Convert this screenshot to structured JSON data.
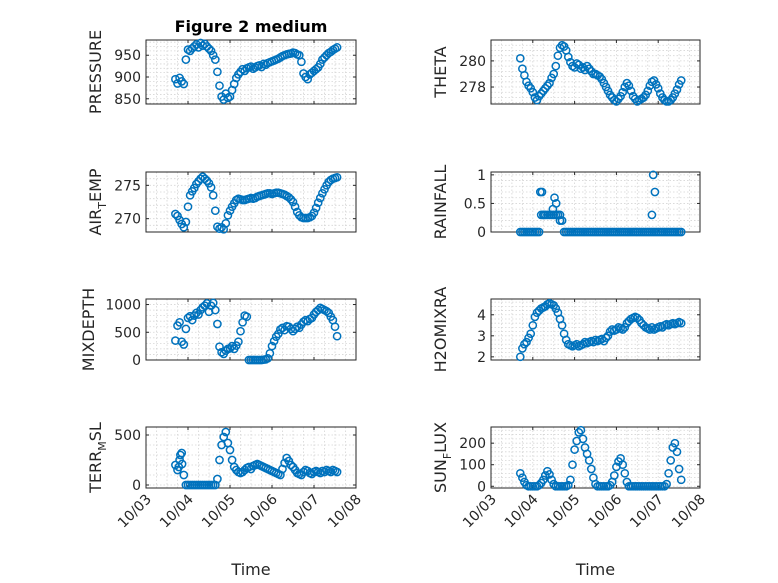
{
  "figure": {
    "title": "Figure 2 medium",
    "marker_color": "#0072BD",
    "x_tick_labels": [
      "10/03",
      "10/04",
      "10/05",
      "10/06",
      "10/07",
      "10/08"
    ],
    "x_label": "Time"
  },
  "chart_data": [
    {
      "type": "scatter",
      "id": "pressure",
      "title": "Figure 2 medium",
      "ylabel": "PRESSURE",
      "yticks": [
        850,
        900,
        950
      ],
      "ylim": [
        838,
        985
      ],
      "xlim": [
        3,
        8
      ],
      "x": [
        3.7,
        3.75,
        3.8,
        3.85,
        3.9,
        3.95,
        4.0,
        4.05,
        4.1,
        4.15,
        4.2,
        4.25,
        4.3,
        4.35,
        4.4,
        4.45,
        4.5,
        4.55,
        4.6,
        4.65,
        4.7,
        4.75,
        4.8,
        4.85,
        4.9,
        4.95,
        5.0,
        5.05,
        5.1,
        5.15,
        5.2,
        5.25,
        5.3,
        5.35,
        5.4,
        5.45,
        5.5,
        5.55,
        5.6,
        5.65,
        5.7,
        5.75,
        5.8,
        5.85,
        5.9,
        5.95,
        6.0,
        6.05,
        6.1,
        6.15,
        6.2,
        6.25,
        6.3,
        6.35,
        6.4,
        6.45,
        6.5,
        6.55,
        6.6,
        6.65,
        6.7,
        6.75,
        6.8,
        6.85,
        6.9,
        6.95,
        7.0,
        7.05,
        7.1,
        7.15,
        7.2,
        7.25,
        7.3,
        7.35,
        7.4,
        7.45,
        7.5,
        7.55
      ],
      "y": [
        895,
        885,
        898,
        890,
        884,
        940,
        963,
        960,
        966,
        970,
        975,
        968,
        978,
        972,
        976,
        970,
        965,
        960,
        950,
        940,
        912,
        880,
        855,
        848,
        862,
        852,
        855,
        870,
        884,
        898,
        906,
        912,
        918,
        914,
        920,
        922,
        924,
        919,
        922,
        925,
        927,
        923,
        930,
        928,
        932,
        934,
        936,
        938,
        940,
        942,
        945,
        948,
        950,
        952,
        953,
        954,
        956,
        955,
        952,
        950,
        935,
        908,
        900,
        895,
        906,
        910,
        914,
        918,
        922,
        930,
        940,
        945,
        950,
        955,
        958,
        962,
        965,
        968
      ]
    },
    {
      "type": "scatter",
      "id": "theta",
      "ylabel": "THETA",
      "yticks": [
        278,
        280
      ],
      "ylim": [
        276.7,
        281.6
      ],
      "xlim": [
        3,
        8
      ],
      "x": [
        3.7,
        3.75,
        3.8,
        3.85,
        3.9,
        3.95,
        4.0,
        4.05,
        4.1,
        4.15,
        4.2,
        4.25,
        4.3,
        4.35,
        4.4,
        4.45,
        4.5,
        4.55,
        4.6,
        4.65,
        4.7,
        4.75,
        4.8,
        4.85,
        4.9,
        4.95,
        5.0,
        5.05,
        5.1,
        5.15,
        5.2,
        5.25,
        5.3,
        5.35,
        5.4,
        5.45,
        5.5,
        5.55,
        5.6,
        5.65,
        5.7,
        5.75,
        5.8,
        5.85,
        5.9,
        5.95,
        6.0,
        6.05,
        6.1,
        6.15,
        6.2,
        6.25,
        6.3,
        6.35,
        6.4,
        6.45,
        6.5,
        6.55,
        6.6,
        6.65,
        6.7,
        6.75,
        6.8,
        6.85,
        6.9,
        6.95,
        7.0,
        7.05,
        7.1,
        7.15,
        7.2,
        7.25,
        7.3,
        7.35,
        7.4,
        7.45,
        7.5,
        7.55
      ],
      "y": [
        280.2,
        279.4,
        278.9,
        278.4,
        278.1,
        277.9,
        277.6,
        277.2,
        277.0,
        277.3,
        277.5,
        277.7,
        277.9,
        278.1,
        278.3,
        278.7,
        279.0,
        279.6,
        280.4,
        281.0,
        281.2,
        281.1,
        280.8,
        280.3,
        279.9,
        279.6,
        279.5,
        279.8,
        279.7,
        279.4,
        279.5,
        279.3,
        279.6,
        279.4,
        279.2,
        279.0,
        279.0,
        278.9,
        278.8,
        278.6,
        278.3,
        278.0,
        277.7,
        277.4,
        277.2,
        277.0,
        276.9,
        277.1,
        277.3,
        277.6,
        278.0,
        278.3,
        278.1,
        277.7,
        277.3,
        277.1,
        276.9,
        277.0,
        277.1,
        277.2,
        277.4,
        277.7,
        278.1,
        278.4,
        278.5,
        278.2,
        277.9,
        277.5,
        277.2,
        277.0,
        276.9,
        276.9,
        277.0,
        277.2,
        277.5,
        277.8,
        278.2,
        278.5
      ]
    },
    {
      "type": "scatter",
      "id": "air_temp",
      "ylabel": "AIR_TEMP",
      "ylabel_main": "AIR",
      "ylabel_sub": "T",
      "ylabel_rest": "EMP",
      "yticks": [
        270,
        275
      ],
      "ylim": [
        268,
        277
      ],
      "xlim": [
        3,
        8
      ],
      "x": [
        3.7,
        3.75,
        3.8,
        3.85,
        3.9,
        3.95,
        4.0,
        4.05,
        4.1,
        4.15,
        4.2,
        4.25,
        4.3,
        4.35,
        4.4,
        4.45,
        4.5,
        4.55,
        4.6,
        4.65,
        4.7,
        4.75,
        4.8,
        4.85,
        4.9,
        4.95,
        5.0,
        5.05,
        5.1,
        5.15,
        5.2,
        5.25,
        5.3,
        5.35,
        5.4,
        5.45,
        5.5,
        5.55,
        5.6,
        5.65,
        5.7,
        5.75,
        5.8,
        5.85,
        5.9,
        5.95,
        6.0,
        6.05,
        6.1,
        6.15,
        6.2,
        6.25,
        6.3,
        6.35,
        6.4,
        6.45,
        6.5,
        6.55,
        6.6,
        6.65,
        6.7,
        6.75,
        6.8,
        6.85,
        6.9,
        6.95,
        7.0,
        7.05,
        7.1,
        7.15,
        7.2,
        7.25,
        7.3,
        7.35,
        7.4,
        7.45,
        7.5,
        7.55
      ],
      "y": [
        270.7,
        270.4,
        269.8,
        269.2,
        268.7,
        269.5,
        271.8,
        273.5,
        274.1,
        274.6,
        275.2,
        275.6,
        276.0,
        276.3,
        276.0,
        275.7,
        275.3,
        274.7,
        273.5,
        271.2,
        268.8,
        268.5,
        268.7,
        268.4,
        269.3,
        270.5,
        271.2,
        271.8,
        272.3,
        272.8,
        273.0,
        272.9,
        272.8,
        272.8,
        272.9,
        273.0,
        273.1,
        273.0,
        273.1,
        273.3,
        273.4,
        273.5,
        273.6,
        273.7,
        273.8,
        273.8,
        273.7,
        273.8,
        273.9,
        273.9,
        273.8,
        273.7,
        273.6,
        273.4,
        273.2,
        272.9,
        272.5,
        271.8,
        271.0,
        270.5,
        270.2,
        270.1,
        270.1,
        270.1,
        270.2,
        270.4,
        270.9,
        271.6,
        272.4,
        273.1,
        273.8,
        274.4,
        275.0,
        275.5,
        275.8,
        276.0,
        276.1,
        276.2
      ]
    },
    {
      "type": "scatter",
      "id": "rainfall",
      "ylabel": "RAINFALL",
      "yticks": [
        0,
        0.5,
        1
      ],
      "ylim": [
        0,
        1.05
      ],
      "xlim": [
        3,
        8
      ],
      "x": [
        3.7,
        3.75,
        3.8,
        3.85,
        3.9,
        3.95,
        4.0,
        4.05,
        4.1,
        4.15,
        4.2,
        4.25,
        4.3,
        4.35,
        4.4,
        4.45,
        4.5,
        4.55,
        4.6,
        4.65,
        4.7,
        4.75,
        4.8,
        4.85,
        4.9,
        4.95,
        5.0,
        5.05,
        5.1,
        5.15,
        5.2,
        5.25,
        5.3,
        5.35,
        5.4,
        5.45,
        5.5,
        5.55,
        5.6,
        5.65,
        5.7,
        5.75,
        5.8,
        5.85,
        5.9,
        5.95,
        6.0,
        6.05,
        6.1,
        6.15,
        6.2,
        6.25,
        6.3,
        6.35,
        6.4,
        6.45,
        6.5,
        6.55,
        6.6,
        6.65,
        6.7,
        6.75,
        6.8,
        6.85,
        6.9,
        6.95,
        7.0,
        7.05,
        7.1,
        7.15,
        7.2,
        7.25,
        7.3,
        7.35,
        7.4,
        7.45,
        7.5,
        7.55,
        4.18,
        4.22,
        4.26,
        4.48,
        4.52,
        4.56,
        4.6,
        4.65,
        6.85,
        6.88,
        6.92
      ],
      "y": [
        0,
        0,
        0,
        0,
        0,
        0,
        0,
        0,
        0,
        0,
        0.3,
        0.3,
        0.3,
        0.3,
        0.3,
        0.3,
        0.3,
        0.3,
        0.3,
        0.3,
        0.2,
        0,
        0,
        0,
        0,
        0,
        0,
        0,
        0,
        0,
        0,
        0,
        0,
        0,
        0,
        0,
        0,
        0,
        0,
        0,
        0,
        0,
        0,
        0,
        0,
        0,
        0,
        0,
        0,
        0,
        0,
        0,
        0,
        0,
        0,
        0,
        0,
        0,
        0,
        0,
        0,
        0,
        0,
        0,
        0,
        0,
        0,
        0,
        0,
        0,
        0,
        0,
        0,
        0,
        0,
        0,
        0,
        0,
        0.7,
        0.7,
        0.3,
        0.4,
        0.6,
        0.5,
        0.3,
        0.2,
        0.3,
        1.0,
        0.7
      ]
    },
    {
      "type": "scatter",
      "id": "mixdepth",
      "ylabel": "MIXDEPTH",
      "yticks": [
        0,
        500,
        1000
      ],
      "ylim": [
        0,
        1100
      ],
      "xlim": [
        3,
        8
      ],
      "x": [
        3.7,
        3.75,
        3.8,
        3.85,
        3.9,
        3.95,
        4.0,
        4.05,
        4.1,
        4.15,
        4.2,
        4.25,
        4.3,
        4.35,
        4.4,
        4.45,
        4.5,
        4.55,
        4.6,
        4.65,
        4.7,
        4.75,
        4.8,
        4.85,
        4.9,
        4.95,
        5.0,
        5.05,
        5.1,
        5.15,
        5.2,
        5.25,
        5.3,
        5.35,
        5.4,
        5.45,
        5.5,
        5.55,
        5.6,
        5.65,
        5.7,
        5.75,
        5.8,
        5.85,
        5.9,
        5.95,
        6.0,
        6.05,
        6.1,
        6.15,
        6.2,
        6.25,
        6.3,
        6.35,
        6.4,
        6.45,
        6.5,
        6.55,
        6.6,
        6.65,
        6.7,
        6.75,
        6.8,
        6.85,
        6.9,
        6.95,
        7.0,
        7.05,
        7.1,
        7.15,
        7.2,
        7.25,
        7.3,
        7.35,
        7.4,
        7.45,
        7.5,
        7.55
      ],
      "y": [
        350,
        620,
        680,
        330,
        280,
        560,
        760,
        790,
        720,
        800,
        850,
        820,
        900,
        950,
        980,
        1020,
        870,
        980,
        1030,
        900,
        650,
        240,
        140,
        110,
        170,
        200,
        210,
        250,
        200,
        260,
        330,
        520,
        680,
        800,
        780,
        0,
        0,
        0,
        0,
        0,
        0,
        0,
        5,
        10,
        30,
        120,
        250,
        340,
        420,
        470,
        550,
        580,
        540,
        610,
        600,
        560,
        520,
        560,
        600,
        580,
        640,
        690,
        720,
        700,
        740,
        760,
        820,
        870,
        900,
        940,
        920,
        900,
        880,
        850,
        780,
        720,
        600,
        430
      ]
    },
    {
      "type": "scatter",
      "id": "h2omixra",
      "ylabel": "H2OMIXRA",
      "yticks": [
        2,
        3,
        4
      ],
      "ylim": [
        1.85,
        4.75
      ],
      "xlim": [
        3,
        8
      ],
      "x": [
        3.7,
        3.75,
        3.8,
        3.85,
        3.9,
        3.95,
        4.0,
        4.05,
        4.1,
        4.15,
        4.2,
        4.25,
        4.3,
        4.35,
        4.4,
        4.45,
        4.5,
        4.55,
        4.6,
        4.65,
        4.7,
        4.75,
        4.8,
        4.85,
        4.9,
        4.95,
        5.0,
        5.05,
        5.1,
        5.15,
        5.2,
        5.25,
        5.3,
        5.35,
        5.4,
        5.45,
        5.5,
        5.55,
        5.6,
        5.65,
        5.7,
        5.75,
        5.8,
        5.85,
        5.9,
        5.95,
        6.0,
        6.05,
        6.1,
        6.15,
        6.2,
        6.25,
        6.3,
        6.35,
        6.4,
        6.45,
        6.5,
        6.55,
        6.6,
        6.65,
        6.7,
        6.75,
        6.8,
        6.85,
        6.9,
        6.95,
        7.0,
        7.05,
        7.1,
        7.15,
        7.2,
        7.25,
        7.3,
        7.35,
        7.4,
        7.45,
        7.5,
        7.55
      ],
      "y": [
        2.0,
        2.4,
        2.6,
        2.7,
        2.9,
        3.1,
        3.5,
        3.9,
        4.1,
        4.2,
        4.3,
        4.35,
        4.4,
        4.5,
        4.55,
        4.5,
        4.45,
        4.3,
        4.1,
        3.8,
        3.5,
        3.1,
        2.8,
        2.6,
        2.55,
        2.5,
        2.55,
        2.6,
        2.5,
        2.55,
        2.6,
        2.7,
        2.65,
        2.7,
        2.75,
        2.7,
        2.8,
        2.75,
        2.8,
        2.85,
        2.75,
        2.9,
        3.0,
        3.2,
        3.3,
        3.25,
        3.3,
        3.4,
        3.35,
        3.3,
        3.4,
        3.6,
        3.7,
        3.8,
        3.85,
        3.9,
        3.85,
        3.75,
        3.6,
        3.5,
        3.4,
        3.35,
        3.3,
        3.4,
        3.3,
        3.35,
        3.4,
        3.45,
        3.4,
        3.5,
        3.55,
        3.5,
        3.55,
        3.6,
        3.55,
        3.6,
        3.65,
        3.6
      ]
    },
    {
      "type": "scatter",
      "id": "terr_msl",
      "ylabel": "TERR_MSL",
      "ylabel_main": "TERR",
      "ylabel_sub": "M",
      "ylabel_rest": "SL",
      "yticks": [
        0,
        500
      ],
      "ylim": [
        -30,
        580
      ],
      "xlim": [
        3,
        8
      ],
      "x": [
        3.7,
        3.75,
        3.8,
        3.85,
        3.9,
        3.95,
        4.0,
        4.05,
        4.1,
        4.15,
        4.2,
        4.25,
        4.3,
        4.35,
        4.4,
        4.45,
        4.5,
        4.55,
        4.6,
        4.65,
        4.7,
        4.75,
        4.8,
        4.85,
        4.9,
        4.95,
        5.0,
        5.05,
        5.1,
        5.15,
        5.2,
        5.25,
        5.3,
        5.35,
        5.4,
        5.45,
        5.5,
        5.55,
        5.6,
        5.65,
        5.7,
        5.75,
        5.8,
        5.85,
        5.9,
        5.95,
        6.0,
        6.05,
        6.1,
        6.15,
        6.2,
        6.25,
        6.3,
        6.35,
        6.4,
        6.45,
        6.5,
        6.55,
        6.6,
        6.65,
        6.7,
        6.75,
        6.8,
        6.85,
        6.9,
        6.95,
        7.0,
        7.05,
        7.1,
        7.15,
        7.2,
        7.25,
        7.3,
        7.35,
        7.4,
        7.45,
        7.5,
        7.55,
        3.78,
        3.82,
        3.86
      ],
      "y": [
        200,
        150,
        250,
        320,
        100,
        0,
        0,
        0,
        0,
        0,
        0,
        0,
        0,
        0,
        0,
        0,
        0,
        0,
        0,
        0,
        60,
        250,
        400,
        480,
        530,
        420,
        350,
        250,
        180,
        150,
        130,
        120,
        130,
        150,
        170,
        180,
        160,
        190,
        200,
        210,
        200,
        190,
        180,
        170,
        160,
        150,
        140,
        130,
        120,
        110,
        100,
        160,
        220,
        270,
        240,
        200,
        180,
        150,
        120,
        110,
        100,
        130,
        150,
        140,
        120,
        110,
        130,
        140,
        130,
        120,
        140,
        130,
        150,
        140,
        130,
        150,
        140,
        130,
        180,
        300,
        210
      ]
    },
    {
      "type": "scatter",
      "id": "sun_flux",
      "ylabel": "SUN_FLUX",
      "ylabel_main": "SUN",
      "ylabel_sub": "F",
      "ylabel_rest": "LUX",
      "yticks": [
        0,
        100,
        200
      ],
      "ylim": [
        -8,
        275
      ],
      "xlim": [
        3,
        8
      ],
      "x": [
        3.7,
        3.75,
        3.8,
        3.85,
        3.9,
        3.95,
        4.0,
        4.05,
        4.1,
        4.15,
        4.2,
        4.25,
        4.3,
        4.35,
        4.4,
        4.45,
        4.5,
        4.55,
        4.6,
        4.65,
        4.7,
        4.75,
        4.8,
        4.85,
        4.9,
        4.95,
        5.0,
        5.05,
        5.1,
        5.15,
        5.2,
        5.25,
        5.3,
        5.35,
        5.4,
        5.45,
        5.5,
        5.55,
        5.6,
        5.65,
        5.7,
        5.75,
        5.8,
        5.85,
        5.9,
        5.95,
        6.0,
        6.05,
        6.1,
        6.15,
        6.2,
        6.25,
        6.3,
        6.35,
        6.4,
        6.45,
        6.5,
        6.55,
        6.6,
        6.65,
        6.7,
        6.75,
        6.8,
        6.85,
        6.9,
        6.95,
        7.0,
        7.05,
        7.1,
        7.15,
        7.2,
        7.25,
        7.3,
        7.35,
        7.4,
        7.45,
        7.5,
        7.55
      ],
      "y": [
        60,
        40,
        20,
        5,
        0,
        0,
        0,
        0,
        0,
        5,
        15,
        30,
        50,
        70,
        55,
        30,
        10,
        0,
        0,
        0,
        0,
        0,
        0,
        5,
        30,
        100,
        170,
        210,
        250,
        260,
        220,
        180,
        150,
        120,
        80,
        40,
        10,
        0,
        0,
        0,
        0,
        0,
        0,
        5,
        20,
        50,
        90,
        115,
        130,
        100,
        60,
        20,
        0,
        0,
        0,
        0,
        0,
        0,
        0,
        0,
        0,
        0,
        0,
        0,
        0,
        0,
        0,
        0,
        0,
        0,
        10,
        60,
        120,
        180,
        200,
        160,
        80,
        30
      ]
    }
  ]
}
